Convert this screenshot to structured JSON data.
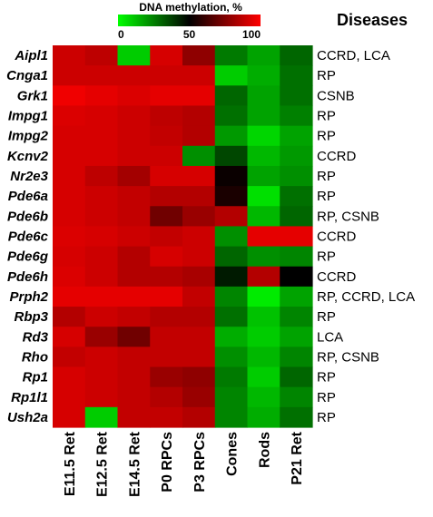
{
  "chart_data": {
    "type": "heatmap",
    "legend": {
      "title": "DNA methylation, %",
      "ticks": [
        "0",
        "50",
        "100"
      ],
      "range": [
        0,
        100
      ],
      "low_color": "#00ff00",
      "mid_color": "#000000",
      "high_color": "#ff0000"
    },
    "columns": [
      "E11.5 Ret",
      "E12.5 Ret",
      "E14.5 Ret",
      "P0 RPCs",
      "P3 RPCs",
      "Cones",
      "Rods",
      "P21 Ret"
    ],
    "rows": [
      "Aipl1",
      "Cnga1",
      "Grk1",
      "Impg1",
      "Impg2",
      "Kcnv2",
      "Nr2e3",
      "Pde6a",
      "Pde6b",
      "Pde6c",
      "Pde6g",
      "Pde6h",
      "Prph2",
      "Rbp3",
      "Rd3",
      "Rho",
      "Rp1",
      "Rp1l1",
      "Ush2a"
    ],
    "diseases_header": "Diseases",
    "diseases": [
      "CCRD, LCA",
      "RP",
      "CSNB",
      "RP",
      "RP",
      "CCRD",
      "RP",
      "RP",
      "RP, CSNB",
      "CCRD",
      "RP",
      "CCRD",
      "RP, CCRD, LCA",
      "RP",
      "LCA",
      "RP, CSNB",
      "RP",
      "RP",
      "RP"
    ],
    "values": [
      [
        90,
        87,
        10,
        92,
        78,
        26,
        18,
        30
      ],
      [
        90,
        90,
        90,
        90,
        90,
        10,
        16,
        28
      ],
      [
        97,
        95,
        93,
        95,
        95,
        30,
        18,
        28
      ],
      [
        93,
        92,
        90,
        87,
        85,
        28,
        18,
        25
      ],
      [
        92,
        92,
        90,
        88,
        85,
        20,
        8,
        18
      ],
      [
        92,
        92,
        90,
        90,
        22,
        36,
        14,
        20
      ],
      [
        92,
        87,
        82,
        92,
        92,
        52,
        18,
        22
      ],
      [
        92,
        90,
        88,
        85,
        85,
        55,
        6,
        28
      ],
      [
        92,
        90,
        88,
        72,
        80,
        85,
        14,
        30
      ],
      [
        93,
        92,
        90,
        88,
        90,
        22,
        95,
        95
      ],
      [
        92,
        90,
        85,
        92,
        90,
        30,
        22,
        24
      ],
      [
        93,
        90,
        85,
        85,
        83,
        45,
        85,
        50
      ],
      [
        95,
        95,
        95,
        95,
        88,
        24,
        4,
        18
      ],
      [
        85,
        90,
        88,
        85,
        85,
        28,
        12,
        24
      ],
      [
        92,
        80,
        72,
        88,
        88,
        16,
        10,
        18
      ],
      [
        88,
        90,
        88,
        88,
        88,
        22,
        14,
        24
      ],
      [
        92,
        90,
        88,
        80,
        78,
        26,
        10,
        30
      ],
      [
        92,
        90,
        88,
        85,
        80,
        24,
        14,
        24
      ],
      [
        92,
        10,
        88,
        88,
        85,
        24,
        16,
        28
      ]
    ]
  }
}
